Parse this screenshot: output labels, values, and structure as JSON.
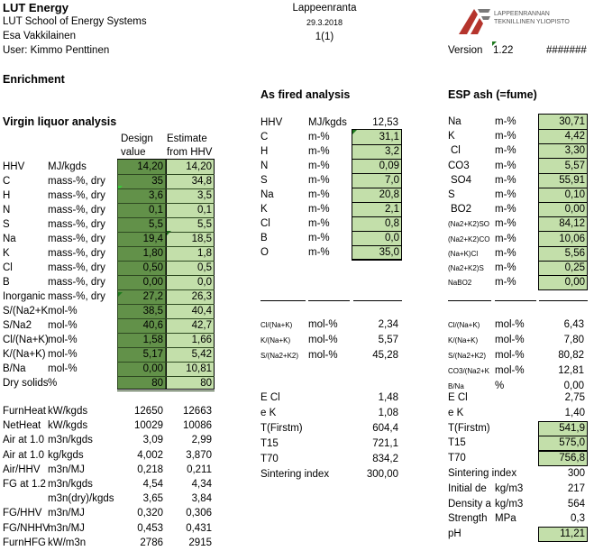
{
  "header": {
    "org": "LUT Energy",
    "school": "LUT School of Energy Systems",
    "author": "Esa Vakkilainen",
    "user": "User: Kimmo Penttinen",
    "city": "Lappeenranta",
    "date": "29.3.2018",
    "page": "1(1)",
    "version_label": "Version",
    "version": "1.22",
    "hash": "#######",
    "logo_line1": "LAPPEENRANNAN",
    "logo_line2": "TEKNILLINEN YLIOPISTO"
  },
  "section_title": "Enrichment",
  "virgin": {
    "title": "Virgin liquor analysis",
    "col_design_1": "Design",
    "col_design_2": "value",
    "col_est_1": "Estimate",
    "col_est_2": "from HHV",
    "rows": [
      {
        "label": "HHV",
        "unit": "MJ/kgds",
        "design": "14,20",
        "estimate": "14,20"
      },
      {
        "label": "C",
        "unit": "mass-%, dry",
        "design": "35",
        "estimate": "34,8"
      },
      {
        "label": "H",
        "unit": "mass-%, dry",
        "design": "3,6",
        "estimate": "3,5"
      },
      {
        "label": "N",
        "unit": "mass-%, dry",
        "design": "0,1",
        "estimate": "0,1"
      },
      {
        "label": "S",
        "unit": "mass-%, dry",
        "design": "5,5",
        "estimate": "5,5"
      },
      {
        "label": "Na",
        "unit": "mass-%, dry",
        "design": "19,4",
        "estimate": "18,5"
      },
      {
        "label": "K",
        "unit": "mass-%, dry",
        "design": "1,80",
        "estimate": "1,8"
      },
      {
        "label": "Cl",
        "unit": "mass-%, dry",
        "design": "0,50",
        "estimate": "0,5"
      },
      {
        "label": "B",
        "unit": "mass-%, dry",
        "design": "0,00",
        "estimate": "0,0"
      },
      {
        "label": "Inorganic",
        "unit": "mass-%, dry",
        "design": "27,2",
        "estimate": "26,3"
      },
      {
        "label": "S/(Na2+K",
        "unit": "mol-%",
        "design": "38,5",
        "estimate": "40,4"
      },
      {
        "label": "S/Na2",
        "unit": "mol-%",
        "design": "40,6",
        "estimate": "42,7"
      },
      {
        "label": "Cl/(Na+K)",
        "unit": "mol-%",
        "design": "1,58",
        "estimate": "1,66"
      },
      {
        "label": "K/(Na+K)",
        "unit": "mol-%",
        "design": "5,17",
        "estimate": "5,42"
      },
      {
        "label": "B/Na",
        "unit": "mol-%",
        "design": "0,00",
        "estimate": "10,81"
      },
      {
        "label": "Dry solids",
        "unit": "%",
        "design": "80",
        "estimate": "80"
      }
    ],
    "calc_rows": [
      {
        "label": "FurnHeat",
        "unit": "kW/kgds",
        "design": "12650",
        "estimate": "12663"
      },
      {
        "label": "NetHeat",
        "unit": "kW/kgds",
        "design": "10029",
        "estimate": "10086"
      },
      {
        "label": "Air at 1.0",
        "unit": "m3n/kgds",
        "design": "3,09",
        "estimate": "2,99"
      },
      {
        "label": "Air at 1.0",
        "unit": "kg/kgds",
        "design": "4,002",
        "estimate": "3,870"
      },
      {
        "label": "Air/HHV",
        "unit": "m3n/MJ",
        "design": "0,218",
        "estimate": "0,211"
      },
      {
        "label": "FG at 1.2",
        "unit": "m3n/kgds",
        "design": "4,54",
        "estimate": "4,34"
      },
      {
        "label": "",
        "unit": "m3n(dry)/kgds",
        "design": "3,65",
        "estimate": "3,84"
      },
      {
        "label": "FG/HHV",
        "unit": "m3n/MJ",
        "design": "0,320",
        "estimate": "0,306"
      },
      {
        "label": "FG/NHHV",
        "unit": "m3n/MJ",
        "design": "0,453",
        "estimate": "0,431"
      },
      {
        "label": "FurnHFG",
        "unit": "kW/m3n",
        "design": "2786",
        "estimate": "2915"
      }
    ]
  },
  "fired": {
    "title": "As fired analysis",
    "hhv": {
      "label": "HHV",
      "unit": "MJ/kgds",
      "value": "12,53"
    },
    "rows": [
      {
        "label": "C",
        "unit": "m-%",
        "value": "31,1"
      },
      {
        "label": "H",
        "unit": "m-%",
        "value": "3,2"
      },
      {
        "label": "N",
        "unit": "m-%",
        "value": "0,09"
      },
      {
        "label": "S",
        "unit": "m-%",
        "value": "7,0"
      },
      {
        "label": "Na",
        "unit": "m-%",
        "value": "20,8"
      },
      {
        "label": "K",
        "unit": "m-%",
        "value": "2,1"
      },
      {
        "label": "Cl",
        "unit": "m-%",
        "value": "0,8"
      },
      {
        "label": "B",
        "unit": "m-%",
        "value": "0,0"
      },
      {
        "label": "O",
        "unit": "m-%",
        "value": "35,0"
      }
    ],
    "ratios": [
      {
        "label": "Cl/(Na+K)",
        "unit": "mol-%",
        "value": "2,34"
      },
      {
        "label": "K/(Na+K)",
        "unit": "mol-%",
        "value": "5,57"
      },
      {
        "label": "S/(Na2+K2)",
        "unit": "mol-%",
        "value": "45,28"
      }
    ],
    "extra": [
      {
        "label": "E Cl",
        "value": "1,48"
      },
      {
        "label": "e K",
        "value": "1,08"
      },
      {
        "label": "T(Firstm)",
        "value": "604,4"
      },
      {
        "label": "T15",
        "value": "721,1"
      },
      {
        "label": "T70",
        "value": "834,2"
      },
      {
        "label": "Sintering index",
        "value": "300,00"
      }
    ]
  },
  "esp": {
    "title": "ESP ash (=fume)",
    "rows": [
      {
        "label": "Na",
        "unit": "m-%",
        "value": "30,71",
        "small": false
      },
      {
        "label": "K",
        "unit": "m-%",
        "value": "4,42",
        "small": false
      },
      {
        "label": "Cl",
        "unit": "m-%",
        "value": "3,30",
        "small": false
      },
      {
        "label": "CO3",
        "unit": "m-%",
        "value": "5,57",
        "small": false
      },
      {
        "label": "SO4",
        "unit": "m-%",
        "value": "55,91",
        "small": false
      },
      {
        "label": "S",
        "unit": "m-%",
        "value": "0,10",
        "small": false
      },
      {
        "label": "BO2",
        "unit": "m-%",
        "value": "0,00",
        "small": false
      },
      {
        "label": "(Na2+K2)SO",
        "unit": "m-%",
        "value": "84,12",
        "small": true
      },
      {
        "label": "(Na2+K2)CO",
        "unit": "m-%",
        "value": "10,06",
        "small": true
      },
      {
        "label": "(Na+K)Cl",
        "unit": "m-%",
        "value": "5,56",
        "small": true
      },
      {
        "label": "(Na2+K2)S",
        "unit": "m-%",
        "value": "0,25",
        "small": true
      },
      {
        "label": "NaBO2",
        "unit": "m-%",
        "value": "0,00",
        "small": true
      }
    ],
    "ratios": [
      {
        "label": "Cl/(Na+K)",
        "unit": "mol-%",
        "value": "6,43"
      },
      {
        "label": "K/(Na+K)",
        "unit": "mol-%",
        "value": "7,80"
      },
      {
        "label": "S/(Na2+K2)",
        "unit": "mol-%",
        "value": "80,82"
      },
      {
        "label": "CO3/(Na2+K",
        "unit": "mol-%",
        "value": "12,81"
      },
      {
        "label": "B/Na",
        "unit": "%",
        "value": "0,00"
      }
    ],
    "extra": [
      {
        "label": "E Cl",
        "unit": "",
        "value": "2,75",
        "green": false
      },
      {
        "label": "e K",
        "unit": "",
        "value": "1,40",
        "green": false
      },
      {
        "label": "T(Firstm)",
        "unit": "",
        "value": "541,9",
        "green": true
      },
      {
        "label": "T15",
        "unit": "",
        "value": "575,0",
        "green": true
      },
      {
        "label": "T70",
        "unit": "",
        "value": "756,8",
        "green": true
      },
      {
        "label": "Sintering index",
        "unit": "",
        "value": "300",
        "green": false
      },
      {
        "label": "Initial de",
        "unit": "kg/m3",
        "value": "217",
        "green": false
      },
      {
        "label": "Density a",
        "unit": "kg/m3",
        "value": "564",
        "green": false
      },
      {
        "label": "Strength",
        "unit": "MPa",
        "value": "0,3",
        "green": false
      },
      {
        "label": "pH",
        "unit": "",
        "value": "11,21",
        "green": true
      }
    ]
  }
}
